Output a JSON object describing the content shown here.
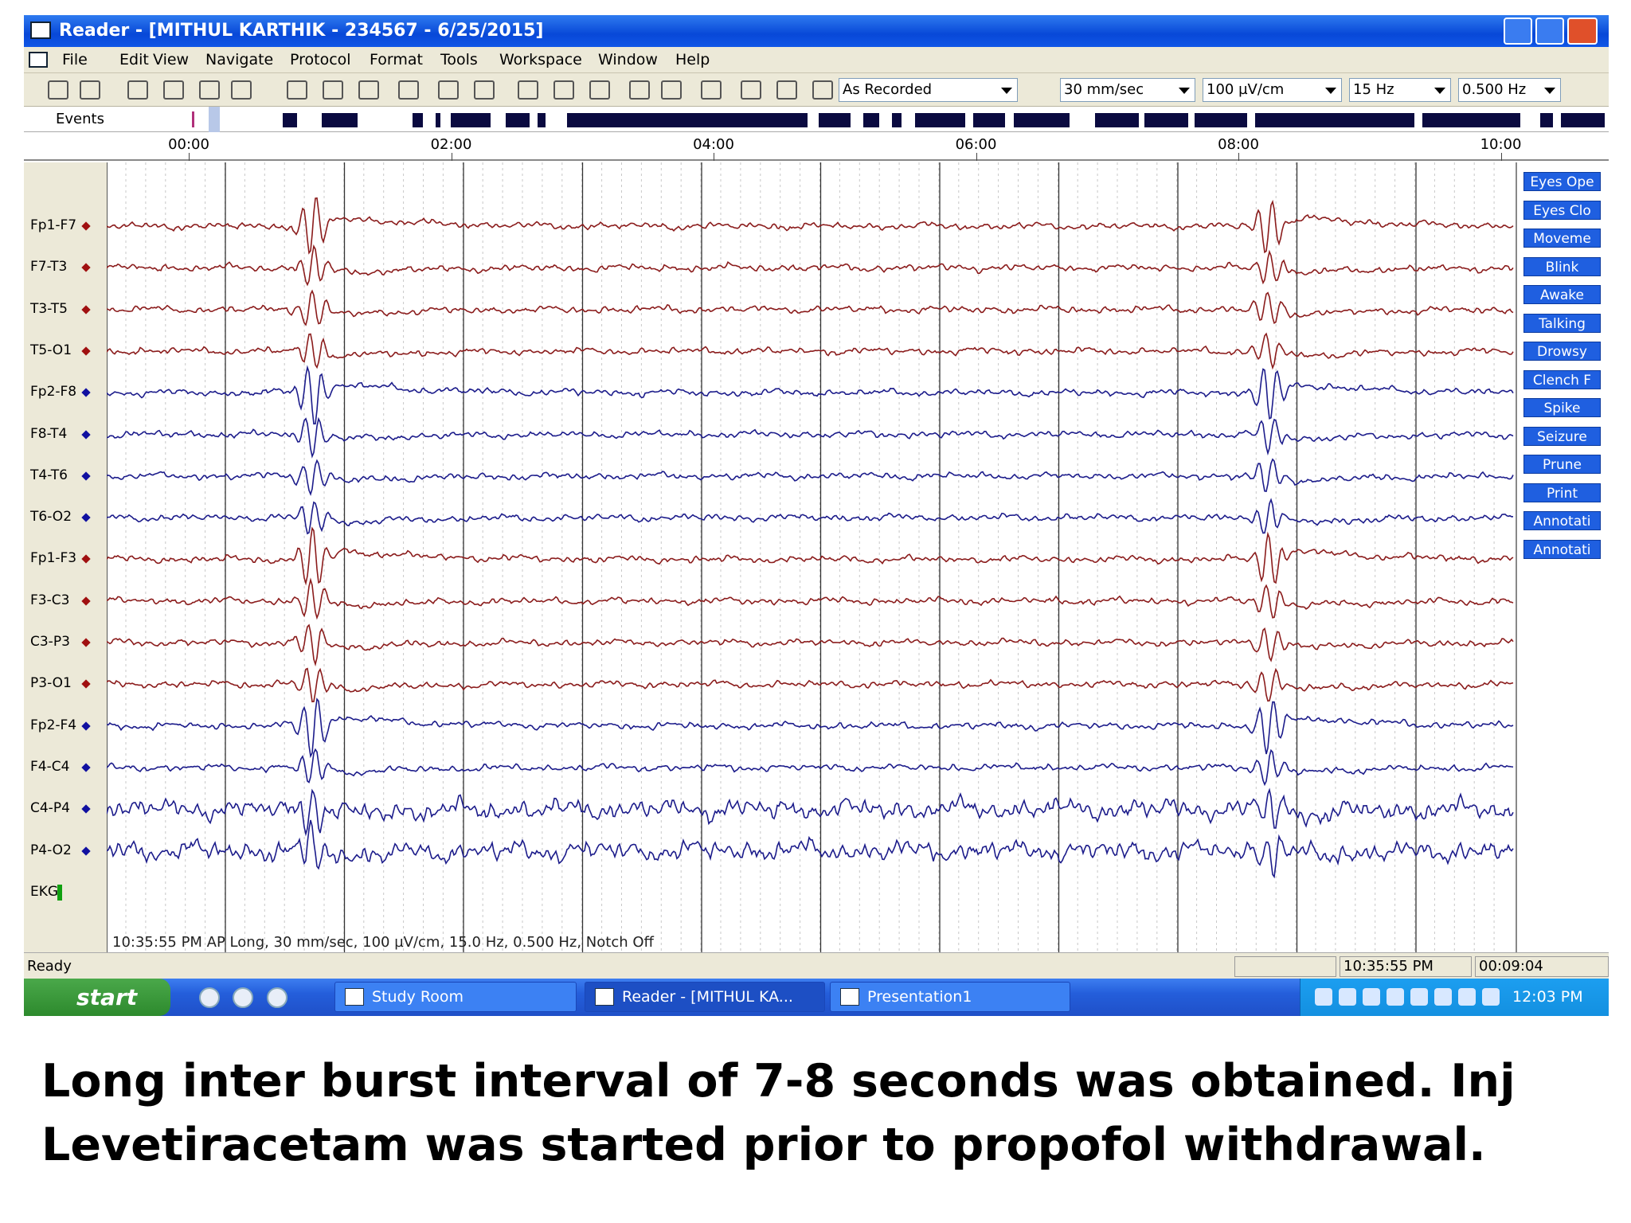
{
  "window": {
    "title": "Reader - [MITHUL KARTHIK - 234567 - 6/25/2015]"
  },
  "menu": [
    "File",
    "Edit",
    "View",
    "Navigate",
    "Protocol",
    "Format",
    "Tools",
    "Workspace",
    "Window",
    "Help"
  ],
  "toolbar": {
    "montage": "As Recorded",
    "speed": "30 mm/sec",
    "sensitivity": "100 µV/cm",
    "high_filter": "15 Hz",
    "low_filter": "0.500 Hz"
  },
  "events_label": "Events",
  "time_ticks": [
    "00:00",
    "02:00",
    "04:00",
    "06:00",
    "08:00",
    "10:00"
  ],
  "channels": [
    "Fp1-F7",
    "F7-T3",
    "T3-T5",
    "T5-O1",
    "Fp2-F8",
    "F8-T4",
    "T4-T6",
    "T6-O2",
    "Fp1-F3",
    "F3-C3",
    "C3-P3",
    "P3-O1",
    "Fp2-F4",
    "F4-C4",
    "C4-P4",
    "P4-O2",
    "EKG"
  ],
  "annotations": [
    "Eyes Ope",
    "Eyes Clo",
    "Moveme",
    "Blink",
    "Awake",
    "Talking",
    "Drowsy",
    "Clench F",
    "Spike",
    "Seizure",
    "Prune",
    "Print",
    "Annotati",
    "Annotati"
  ],
  "plot_status": "10:35:55 PM AP Long, 30 mm/sec, 100 µV/cm, 15.0 Hz, 0.500 Hz, Notch Off",
  "status_bar": {
    "state": "Ready",
    "clock": "10:35:55 PM",
    "elapsed": "00:09:04"
  },
  "taskbar": {
    "start": "start",
    "items": [
      "Study Room",
      "Reader - [MITHUL KA...",
      "Presentation1"
    ],
    "time": "12:03 PM"
  },
  "caption": [
    "Long inter burst interval of 7-8 seconds was obtained. Inj",
    "Levetiracetam was started prior to propofol withdrawal."
  ]
}
